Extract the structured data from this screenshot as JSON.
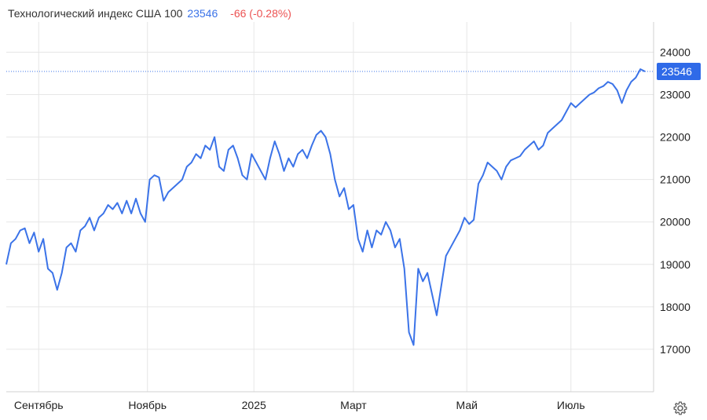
{
  "header": {
    "title": "Технологический индекс США 100",
    "last_value": "23546",
    "change": "-66 (-0.28%)"
  },
  "colors": {
    "line": "#3b73e8",
    "change_negative": "#ec5252",
    "grid": "#e6e6e6",
    "price_tag": "#2f6ae8"
  },
  "settings_icon": "gear-icon",
  "chart_data": {
    "type": "line",
    "title": "Технологический индекс США 100",
    "ylim": [
      16000,
      24600
    ],
    "y_ticks": [
      17000,
      18000,
      19000,
      20000,
      21000,
      22000,
      23000,
      24000
    ],
    "y_tick_labels": [
      "17000",
      "18000",
      "19000",
      "20000",
      "21000",
      "22000",
      "23000",
      "24000"
    ],
    "x_range": [
      0,
      277
    ],
    "x_ticks": [
      {
        "x": 14,
        "label": "Сентябрь"
      },
      {
        "x": 61,
        "label": "Ноябрь"
      },
      {
        "x": 107,
        "label": "2025"
      },
      {
        "x": 150,
        "label": "Март"
      },
      {
        "x": 199,
        "label": "Май"
      },
      {
        "x": 244,
        "label": "Июль"
      }
    ],
    "last_price": 23546,
    "last_price_label": "23546",
    "grid": true,
    "series": [
      {
        "values": [
          [
            0,
            19000
          ],
          [
            2,
            19500
          ],
          [
            4,
            19600
          ],
          [
            6,
            19800
          ],
          [
            8,
            19850
          ],
          [
            10,
            19500
          ],
          [
            12,
            19750
          ],
          [
            14,
            19300
          ],
          [
            16,
            19600
          ],
          [
            18,
            18900
          ],
          [
            20,
            18800
          ],
          [
            22,
            18400
          ],
          [
            24,
            18800
          ],
          [
            26,
            19400
          ],
          [
            28,
            19500
          ],
          [
            30,
            19300
          ],
          [
            32,
            19800
          ],
          [
            34,
            19900
          ],
          [
            36,
            20100
          ],
          [
            38,
            19800
          ],
          [
            40,
            20100
          ],
          [
            42,
            20200
          ],
          [
            44,
            20400
          ],
          [
            46,
            20300
          ],
          [
            48,
            20450
          ],
          [
            50,
            20200
          ],
          [
            52,
            20500
          ],
          [
            54,
            20200
          ],
          [
            56,
            20550
          ],
          [
            58,
            20200
          ],
          [
            60,
            20000
          ],
          [
            62,
            21000
          ],
          [
            64,
            21100
          ],
          [
            66,
            21050
          ],
          [
            68,
            20500
          ],
          [
            70,
            20700
          ],
          [
            72,
            20800
          ],
          [
            74,
            20900
          ],
          [
            76,
            21000
          ],
          [
            78,
            21300
          ],
          [
            80,
            21400
          ],
          [
            82,
            21600
          ],
          [
            84,
            21500
          ],
          [
            86,
            21800
          ],
          [
            88,
            21700
          ],
          [
            90,
            22000
          ],
          [
            92,
            21300
          ],
          [
            94,
            21200
          ],
          [
            96,
            21700
          ],
          [
            98,
            21800
          ],
          [
            100,
            21500
          ],
          [
            102,
            21100
          ],
          [
            104,
            21000
          ],
          [
            106,
            21600
          ],
          [
            108,
            21400
          ],
          [
            110,
            21200
          ],
          [
            112,
            21000
          ],
          [
            114,
            21500
          ],
          [
            116,
            21900
          ],
          [
            118,
            21600
          ],
          [
            120,
            21200
          ],
          [
            122,
            21500
          ],
          [
            124,
            21300
          ],
          [
            126,
            21600
          ],
          [
            128,
            21700
          ],
          [
            130,
            21500
          ],
          [
            132,
            21800
          ],
          [
            134,
            22050
          ],
          [
            136,
            22150
          ],
          [
            138,
            22000
          ],
          [
            140,
            21600
          ],
          [
            142,
            21000
          ],
          [
            144,
            20600
          ],
          [
            146,
            20800
          ],
          [
            148,
            20300
          ],
          [
            150,
            20400
          ],
          [
            152,
            19600
          ],
          [
            154,
            19300
          ],
          [
            156,
            19800
          ],
          [
            158,
            19400
          ],
          [
            160,
            19800
          ],
          [
            162,
            19700
          ],
          [
            164,
            20000
          ],
          [
            166,
            19800
          ],
          [
            168,
            19400
          ],
          [
            170,
            19600
          ],
          [
            172,
            18900
          ],
          [
            174,
            17400
          ],
          [
            176,
            17100
          ],
          [
            178,
            18900
          ],
          [
            180,
            18600
          ],
          [
            182,
            18800
          ],
          [
            184,
            18300
          ],
          [
            186,
            17800
          ],
          [
            188,
            18500
          ],
          [
            190,
            19200
          ],
          [
            192,
            19400
          ],
          [
            194,
            19600
          ],
          [
            196,
            19800
          ],
          [
            198,
            20100
          ],
          [
            200,
            19950
          ],
          [
            202,
            20050
          ],
          [
            204,
            20900
          ],
          [
            206,
            21100
          ],
          [
            208,
            21400
          ],
          [
            210,
            21300
          ],
          [
            212,
            21200
          ],
          [
            214,
            21000
          ],
          [
            216,
            21300
          ],
          [
            218,
            21450
          ],
          [
            220,
            21500
          ],
          [
            222,
            21550
          ],
          [
            224,
            21700
          ],
          [
            226,
            21800
          ],
          [
            228,
            21900
          ],
          [
            230,
            21700
          ],
          [
            232,
            21800
          ],
          [
            234,
            22100
          ],
          [
            236,
            22200
          ],
          [
            238,
            22300
          ],
          [
            240,
            22400
          ],
          [
            242,
            22600
          ],
          [
            244,
            22800
          ],
          [
            246,
            22700
          ],
          [
            248,
            22800
          ],
          [
            250,
            22900
          ],
          [
            252,
            23000
          ],
          [
            254,
            23050
          ],
          [
            256,
            23150
          ],
          [
            258,
            23200
          ],
          [
            260,
            23300
          ],
          [
            262,
            23250
          ],
          [
            264,
            23100
          ],
          [
            266,
            22800
          ],
          [
            268,
            23100
          ],
          [
            270,
            23300
          ],
          [
            272,
            23400
          ],
          [
            274,
            23600
          ],
          [
            276,
            23546
          ]
        ]
      }
    ]
  }
}
